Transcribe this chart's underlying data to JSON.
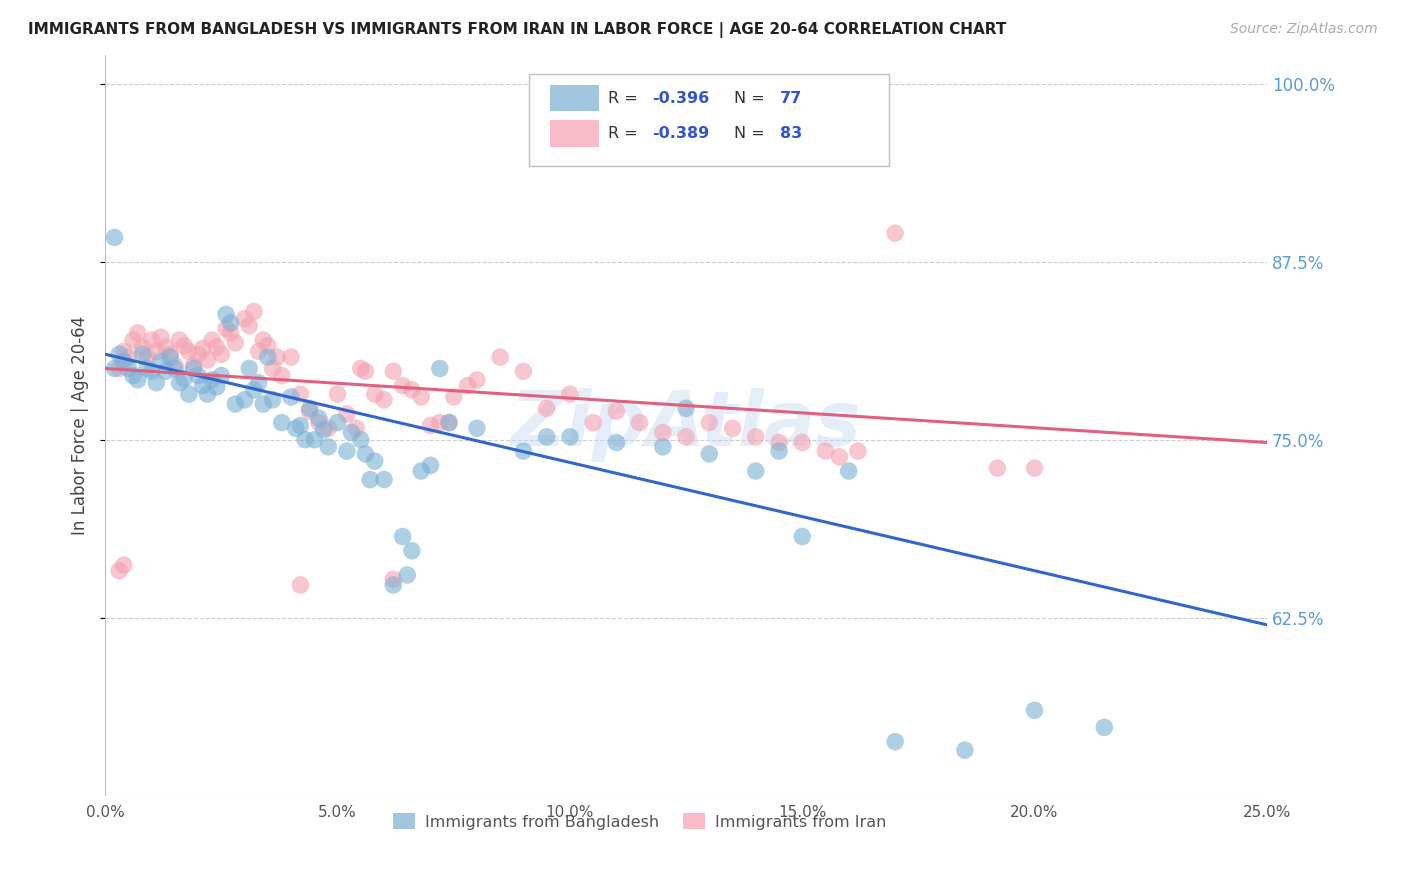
{
  "title": "IMMIGRANTS FROM BANGLADESH VS IMMIGRANTS FROM IRAN IN LABOR FORCE | AGE 20-64 CORRELATION CHART",
  "source": "Source: ZipAtlas.com",
  "ylabel": "In Labor Force | Age 20-64",
  "xlim": [
    0.0,
    0.25
  ],
  "ylim": [
    0.5,
    1.02
  ],
  "yticks": [
    0.625,
    0.75,
    0.875,
    1.0
  ],
  "ytick_labels": [
    "62.5%",
    "75.0%",
    "87.5%",
    "100.0%"
  ],
  "xticks": [
    0.0,
    0.05,
    0.1,
    0.15,
    0.2,
    0.25
  ],
  "xtick_labels": [
    "0.0%",
    "5.0%",
    "10.0%",
    "15.0%",
    "20.0%",
    "25.0%"
  ],
  "bangladesh_color": "#7bafd4",
  "iran_color": "#f4a0b0",
  "watermark": "ZipAtlas",
  "background_color": "#ffffff",
  "grid_color": "#cccccc",
  "tick_color": "#5b9bd5",
  "bangladesh_line": [
    [
      0.0,
      0.81
    ],
    [
      0.25,
      0.62
    ]
  ],
  "iran_line": [
    [
      0.0,
      0.8
    ],
    [
      0.25,
      0.748
    ]
  ],
  "bangladesh_scatter": [
    [
      0.002,
      0.8
    ],
    [
      0.003,
      0.81
    ],
    [
      0.004,
      0.805
    ],
    [
      0.005,
      0.8
    ],
    [
      0.006,
      0.795
    ],
    [
      0.007,
      0.792
    ],
    [
      0.008,
      0.81
    ],
    [
      0.009,
      0.8
    ],
    [
      0.01,
      0.798
    ],
    [
      0.011,
      0.79
    ],
    [
      0.012,
      0.805
    ],
    [
      0.013,
      0.798
    ],
    [
      0.014,
      0.808
    ],
    [
      0.015,
      0.8
    ],
    [
      0.016,
      0.79
    ],
    [
      0.017,
      0.793
    ],
    [
      0.018,
      0.782
    ],
    [
      0.019,
      0.8
    ],
    [
      0.02,
      0.795
    ],
    [
      0.021,
      0.788
    ],
    [
      0.022,
      0.782
    ],
    [
      0.023,
      0.792
    ],
    [
      0.024,
      0.787
    ],
    [
      0.025,
      0.795
    ],
    [
      0.026,
      0.838
    ],
    [
      0.027,
      0.832
    ],
    [
      0.028,
      0.775
    ],
    [
      0.03,
      0.778
    ],
    [
      0.031,
      0.8
    ],
    [
      0.032,
      0.785
    ],
    [
      0.033,
      0.79
    ],
    [
      0.034,
      0.775
    ],
    [
      0.035,
      0.808
    ],
    [
      0.036,
      0.778
    ],
    [
      0.038,
      0.762
    ],
    [
      0.04,
      0.78
    ],
    [
      0.041,
      0.758
    ],
    [
      0.042,
      0.76
    ],
    [
      0.043,
      0.75
    ],
    [
      0.044,
      0.772
    ],
    [
      0.045,
      0.75
    ],
    [
      0.046,
      0.765
    ],
    [
      0.047,
      0.757
    ],
    [
      0.048,
      0.745
    ],
    [
      0.05,
      0.762
    ],
    [
      0.052,
      0.742
    ],
    [
      0.053,
      0.755
    ],
    [
      0.055,
      0.75
    ],
    [
      0.056,
      0.74
    ],
    [
      0.057,
      0.722
    ],
    [
      0.058,
      0.735
    ],
    [
      0.06,
      0.722
    ],
    [
      0.062,
      0.648
    ],
    [
      0.064,
      0.682
    ],
    [
      0.065,
      0.655
    ],
    [
      0.066,
      0.672
    ],
    [
      0.068,
      0.728
    ],
    [
      0.07,
      0.732
    ],
    [
      0.072,
      0.8
    ],
    [
      0.074,
      0.762
    ],
    [
      0.08,
      0.758
    ],
    [
      0.09,
      0.742
    ],
    [
      0.095,
      0.752
    ],
    [
      0.1,
      0.752
    ],
    [
      0.11,
      0.748
    ],
    [
      0.12,
      0.745
    ],
    [
      0.125,
      0.772
    ],
    [
      0.13,
      0.74
    ],
    [
      0.14,
      0.728
    ],
    [
      0.145,
      0.742
    ],
    [
      0.15,
      0.682
    ],
    [
      0.16,
      0.728
    ],
    [
      0.17,
      0.538
    ],
    [
      0.185,
      0.532
    ],
    [
      0.2,
      0.56
    ],
    [
      0.215,
      0.548
    ],
    [
      0.002,
      0.892
    ]
  ],
  "iran_scatter": [
    [
      0.003,
      0.8
    ],
    [
      0.004,
      0.812
    ],
    [
      0.005,
      0.808
    ],
    [
      0.006,
      0.82
    ],
    [
      0.007,
      0.825
    ],
    [
      0.008,
      0.815
    ],
    [
      0.009,
      0.808
    ],
    [
      0.01,
      0.82
    ],
    [
      0.011,
      0.812
    ],
    [
      0.012,
      0.822
    ],
    [
      0.013,
      0.815
    ],
    [
      0.014,
      0.81
    ],
    [
      0.015,
      0.802
    ],
    [
      0.016,
      0.82
    ],
    [
      0.017,
      0.816
    ],
    [
      0.018,
      0.812
    ],
    [
      0.019,
      0.802
    ],
    [
      0.02,
      0.81
    ],
    [
      0.021,
      0.814
    ],
    [
      0.022,
      0.806
    ],
    [
      0.023,
      0.82
    ],
    [
      0.024,
      0.815
    ],
    [
      0.025,
      0.81
    ],
    [
      0.026,
      0.828
    ],
    [
      0.027,
      0.825
    ],
    [
      0.028,
      0.818
    ],
    [
      0.03,
      0.835
    ],
    [
      0.031,
      0.83
    ],
    [
      0.032,
      0.84
    ],
    [
      0.033,
      0.812
    ],
    [
      0.034,
      0.82
    ],
    [
      0.035,
      0.816
    ],
    [
      0.036,
      0.8
    ],
    [
      0.037,
      0.808
    ],
    [
      0.038,
      0.795
    ],
    [
      0.04,
      0.808
    ],
    [
      0.042,
      0.782
    ],
    [
      0.044,
      0.77
    ],
    [
      0.046,
      0.762
    ],
    [
      0.048,
      0.758
    ],
    [
      0.05,
      0.782
    ],
    [
      0.052,
      0.768
    ],
    [
      0.054,
      0.758
    ],
    [
      0.055,
      0.8
    ],
    [
      0.056,
      0.798
    ],
    [
      0.058,
      0.782
    ],
    [
      0.06,
      0.778
    ],
    [
      0.062,
      0.798
    ],
    [
      0.064,
      0.788
    ],
    [
      0.066,
      0.785
    ],
    [
      0.068,
      0.78
    ],
    [
      0.07,
      0.76
    ],
    [
      0.072,
      0.762
    ],
    [
      0.074,
      0.762
    ],
    [
      0.075,
      0.78
    ],
    [
      0.078,
      0.788
    ],
    [
      0.08,
      0.792
    ],
    [
      0.085,
      0.808
    ],
    [
      0.09,
      0.798
    ],
    [
      0.095,
      0.772
    ],
    [
      0.1,
      0.782
    ],
    [
      0.105,
      0.762
    ],
    [
      0.11,
      0.77
    ],
    [
      0.115,
      0.762
    ],
    [
      0.12,
      0.755
    ],
    [
      0.125,
      0.752
    ],
    [
      0.13,
      0.762
    ],
    [
      0.135,
      0.758
    ],
    [
      0.14,
      0.752
    ],
    [
      0.145,
      0.748
    ],
    [
      0.15,
      0.748
    ],
    [
      0.155,
      0.742
    ],
    [
      0.158,
      0.738
    ],
    [
      0.162,
      0.742
    ],
    [
      0.17,
      0.895
    ],
    [
      0.003,
      0.658
    ],
    [
      0.004,
      0.662
    ],
    [
      0.042,
      0.648
    ],
    [
      0.062,
      0.652
    ],
    [
      0.192,
      0.73
    ],
    [
      0.2,
      0.73
    ]
  ]
}
